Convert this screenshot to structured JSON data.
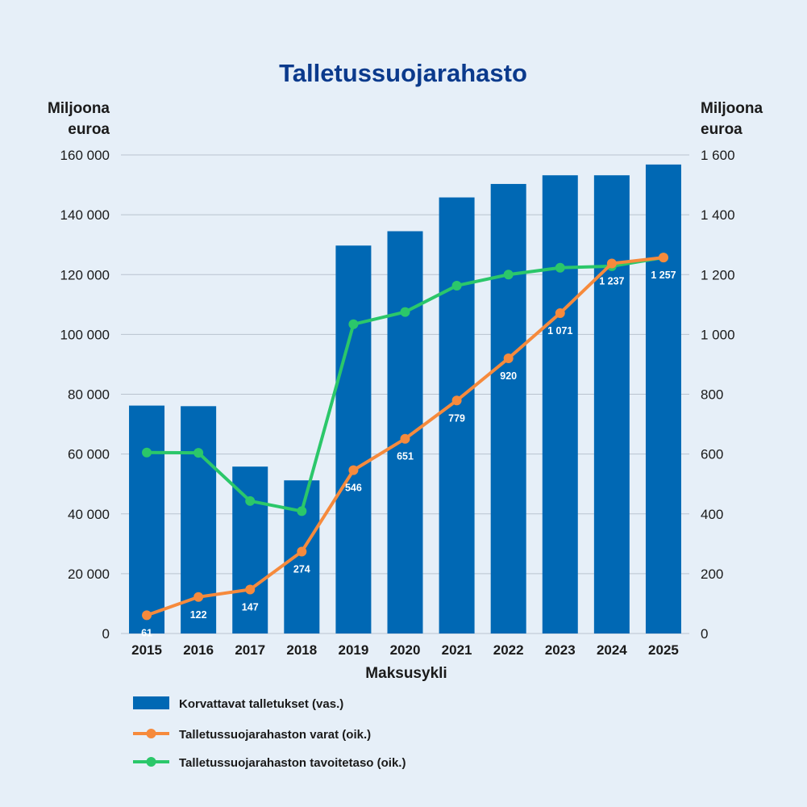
{
  "chart_data": {
    "type": "bar",
    "title": "Talletussuojarahasto",
    "xlabel": "Maksusykli",
    "ylabel_left": [
      "Miljoona",
      "euroa"
    ],
    "ylabel_right": [
      "Miljoona",
      "euroa"
    ],
    "ylim_left": [
      0,
      160000
    ],
    "ylim_right": [
      0,
      1600
    ],
    "yticks_left": [
      "0",
      "20 000",
      "40 000",
      "60 000",
      "80 000",
      "100 000",
      "120 000",
      "140 000",
      "160 000"
    ],
    "yticks_right": [
      "0",
      "200",
      "400",
      "600",
      "800",
      "1 000",
      "1 200",
      "1 400",
      "1 600"
    ],
    "grid": true,
    "legend_position": "bottom",
    "categories": [
      "2015",
      "2016",
      "2017",
      "2018",
      "2019",
      "2020",
      "2021",
      "2022",
      "2023",
      "2024",
      "2025"
    ],
    "series": [
      {
        "name": "Korvattavat talletukset (vas.)",
        "type": "bar",
        "axis": "left",
        "color": "#0068b4",
        "values": [
          76200,
          76000,
          55800,
          51200,
          129700,
          134500,
          145800,
          150300,
          153200,
          153200,
          156800
        ]
      },
      {
        "name": "Talletussuojarahaston varat (oik.)",
        "type": "line",
        "axis": "right",
        "color": "#f68a3c",
        "values": [
          61,
          122,
          147,
          274,
          546,
          651,
          779,
          920,
          1071,
          1237,
          1257
        ],
        "labels": [
          "61",
          "122",
          "147",
          "274",
          "546",
          "651",
          "779",
          "920",
          "1 071",
          "1 237",
          "1 257"
        ]
      },
      {
        "name": "Talletussuojarahaston tavoitetaso (oik.)",
        "type": "line",
        "axis": "right",
        "color": "#2bc76a",
        "values": [
          605,
          604,
          443,
          409,
          1034,
          1075,
          1163,
          1200,
          1223,
          1228,
          1257
        ]
      }
    ]
  }
}
